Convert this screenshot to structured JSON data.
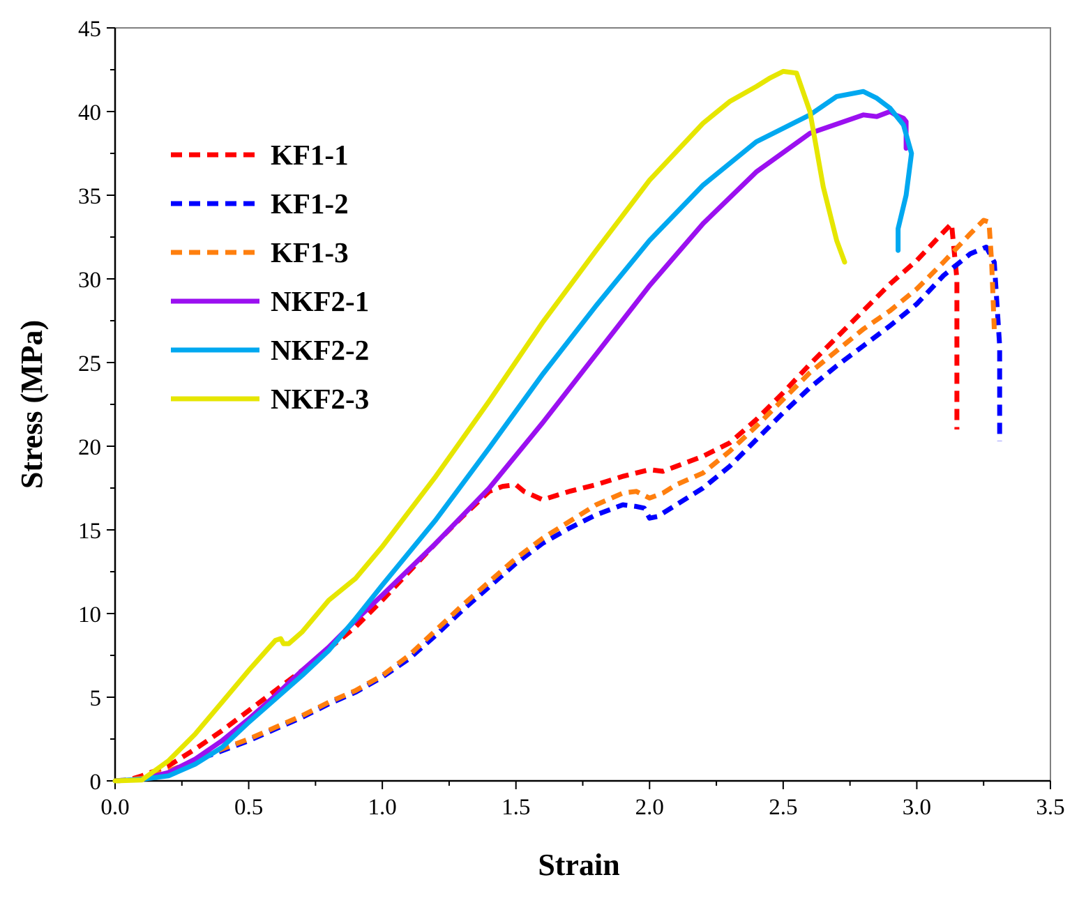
{
  "chart_data": {
    "type": "line",
    "title": "",
    "xlabel": "Strain",
    "ylabel": "Stress (MPa)",
    "xlim": [
      0.0,
      3.5
    ],
    "ylim": [
      0,
      45
    ],
    "x_ticks": [
      "0.0",
      "0.5",
      "1.0",
      "1.5",
      "2.0",
      "2.5",
      "3.0",
      "3.5"
    ],
    "y_ticks": [
      "0",
      "5",
      "10",
      "15",
      "20",
      "25",
      "30",
      "35",
      "40",
      "45"
    ],
    "grid": false,
    "legend_position": "upper-left",
    "series": [
      {
        "name": "KF1-1",
        "color": "#ff0000",
        "style": "dashed",
        "x": [
          0.0,
          0.05,
          0.1,
          0.2,
          0.3,
          0.4,
          0.5,
          0.6,
          0.7,
          0.8,
          0.9,
          1.0,
          1.1,
          1.2,
          1.3,
          1.4,
          1.45,
          1.5,
          1.53,
          1.6,
          1.7,
          1.8,
          1.9,
          2.0,
          2.05,
          2.1,
          2.2,
          2.3,
          2.4,
          2.5,
          2.6,
          2.7,
          2.8,
          2.9,
          3.0,
          3.1,
          3.13,
          3.15,
          3.15
        ],
        "y": [
          0.0,
          0.05,
          0.3,
          0.9,
          1.9,
          3.0,
          4.2,
          5.4,
          6.6,
          7.9,
          9.2,
          10.8,
          12.5,
          14.2,
          15.8,
          17.3,
          17.6,
          17.7,
          17.3,
          16.8,
          17.3,
          17.7,
          18.2,
          18.6,
          18.5,
          18.8,
          19.4,
          20.2,
          21.6,
          23.2,
          24.9,
          26.5,
          28.1,
          29.7,
          31.1,
          32.8,
          33.3,
          30.0,
          21.0
        ]
      },
      {
        "name": "KF1-2",
        "color": "#0000ff",
        "style": "dashed",
        "x": [
          0.0,
          0.1,
          0.2,
          0.3,
          0.4,
          0.5,
          0.6,
          0.7,
          0.8,
          0.9,
          1.0,
          1.1,
          1.2,
          1.3,
          1.4,
          1.5,
          1.6,
          1.7,
          1.8,
          1.9,
          1.95,
          1.98,
          2.0,
          2.03,
          2.1,
          2.2,
          2.3,
          2.4,
          2.5,
          2.6,
          2.7,
          2.8,
          2.9,
          3.0,
          3.1,
          3.2,
          3.26,
          3.29,
          3.31,
          3.31
        ],
        "y": [
          0.0,
          0.1,
          0.5,
          1.2,
          1.8,
          2.4,
          3.1,
          3.8,
          4.6,
          5.3,
          6.2,
          7.3,
          8.7,
          10.2,
          11.6,
          13.0,
          14.2,
          15.1,
          15.9,
          16.5,
          16.4,
          16.3,
          15.7,
          15.8,
          16.5,
          17.5,
          18.8,
          20.4,
          22.0,
          23.5,
          24.8,
          26.0,
          27.2,
          28.5,
          30.2,
          31.5,
          31.9,
          31.0,
          26.0,
          20.3
        ]
      },
      {
        "name": "KF1-3",
        "color": "#ff7f0e",
        "style": "dashed",
        "x": [
          0.0,
          0.1,
          0.2,
          0.3,
          0.4,
          0.5,
          0.6,
          0.7,
          0.8,
          0.9,
          1.0,
          1.1,
          1.2,
          1.3,
          1.4,
          1.5,
          1.6,
          1.7,
          1.8,
          1.9,
          1.95,
          2.0,
          2.05,
          2.1,
          2.2,
          2.3,
          2.4,
          2.5,
          2.6,
          2.7,
          2.8,
          2.9,
          3.0,
          3.1,
          3.2,
          3.25,
          3.27,
          3.28,
          3.29
        ],
        "y": [
          0.0,
          0.15,
          0.6,
          1.2,
          1.9,
          2.5,
          3.2,
          3.9,
          4.7,
          5.4,
          6.3,
          7.5,
          9.0,
          10.5,
          11.9,
          13.3,
          14.5,
          15.5,
          16.5,
          17.2,
          17.3,
          16.9,
          17.2,
          17.7,
          18.4,
          19.7,
          21.2,
          22.8,
          24.4,
          25.7,
          27.0,
          28.1,
          29.4,
          31.0,
          32.7,
          33.5,
          33.4,
          31.0,
          27.0
        ]
      },
      {
        "name": "NKF2-1",
        "color": "#9b10f0",
        "style": "solid",
        "x": [
          0.0,
          0.1,
          0.2,
          0.3,
          0.4,
          0.5,
          0.6,
          0.7,
          0.8,
          0.9,
          1.0,
          1.2,
          1.4,
          1.6,
          1.8,
          2.0,
          2.2,
          2.4,
          2.6,
          2.8,
          2.85,
          2.9,
          2.92,
          2.95,
          2.96,
          2.96
        ],
        "y": [
          0.0,
          0.1,
          0.5,
          1.3,
          2.4,
          3.7,
          5.1,
          6.6,
          8.0,
          9.6,
          11.1,
          14.2,
          17.5,
          21.4,
          25.5,
          29.6,
          33.3,
          36.4,
          38.7,
          39.8,
          39.7,
          40.0,
          39.8,
          39.6,
          39.4,
          37.8
        ]
      },
      {
        "name": "NKF2-2",
        "color": "#00a8f0",
        "style": "solid",
        "x": [
          0.0,
          0.1,
          0.2,
          0.3,
          0.4,
          0.5,
          0.6,
          0.7,
          0.8,
          0.9,
          1.0,
          1.2,
          1.4,
          1.6,
          1.8,
          2.0,
          2.2,
          2.4,
          2.5,
          2.55,
          2.6,
          2.7,
          2.8,
          2.85,
          2.9,
          2.95,
          2.98,
          2.96,
          2.93,
          2.93
        ],
        "y": [
          0.0,
          0.1,
          0.3,
          1.0,
          2.0,
          3.5,
          4.9,
          6.3,
          7.8,
          9.7,
          11.7,
          15.6,
          19.9,
          24.3,
          28.4,
          32.3,
          35.6,
          38.2,
          39.0,
          39.4,
          39.8,
          40.9,
          41.2,
          40.8,
          40.2,
          39.2,
          37.5,
          35.0,
          33.0,
          31.7
        ]
      },
      {
        "name": "NKF2-3",
        "color": "#e6e600",
        "style": "solid",
        "x": [
          0.0,
          0.1,
          0.2,
          0.3,
          0.4,
          0.5,
          0.6,
          0.62,
          0.63,
          0.65,
          0.7,
          0.8,
          0.9,
          1.0,
          1.2,
          1.4,
          1.6,
          1.8,
          2.0,
          2.2,
          2.3,
          2.4,
          2.45,
          2.5,
          2.55,
          2.6,
          2.65,
          2.7,
          2.73
        ],
        "y": [
          0.0,
          0.05,
          1.2,
          2.8,
          4.7,
          6.6,
          8.4,
          8.5,
          8.2,
          8.2,
          8.9,
          10.8,
          12.1,
          14.0,
          18.2,
          22.7,
          27.4,
          31.7,
          35.9,
          39.3,
          40.6,
          41.5,
          42.0,
          42.4,
          42.3,
          40.0,
          35.5,
          32.3,
          31.0
        ]
      }
    ]
  }
}
